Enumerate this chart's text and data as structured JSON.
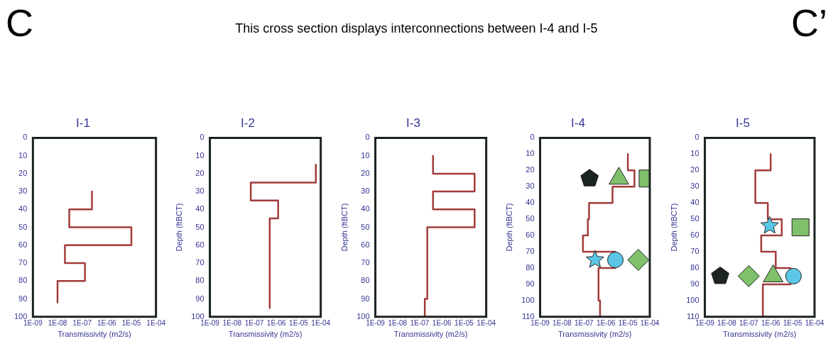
{
  "chart_data": [
    {
      "type": "other",
      "title": "This cross section displays interconnections between I-4 and I-5",
      "annotations": [
        "C",
        "C’"
      ]
    },
    {
      "type": "line",
      "title": "I-1",
      "xlabel": "Transmissivity (m2/s)",
      "log": "x",
      "grid": false,
      "legend": false,
      "xlim": [
        1e-09,
        0.0001
      ],
      "ylim": [
        100,
        0
      ],
      "xticks": [
        {
          "value": 1e-09,
          "label": "1E-09"
        },
        {
          "value": 1e-08,
          "label": "1E-08"
        },
        {
          "value": 1e-07,
          "label": "1E-07"
        },
        {
          "value": 1e-06,
          "label": "1E-06"
        },
        {
          "value": 1e-05,
          "label": "1E-05"
        },
        {
          "value": 0.0001,
          "label": "1E-04"
        }
      ],
      "yticks": [
        0,
        10,
        20,
        30,
        40,
        50,
        60,
        70,
        80,
        90,
        100
      ],
      "series": [
        {
          "type": "line",
          "color": "#a23b3b",
          "marker": "none",
          "x": [
            2.5e-07,
            2.5e-07,
            3e-08,
            3e-08,
            1e-05,
            1e-05,
            2e-08,
            2e-08,
            1.3e-07,
            1.3e-07,
            1e-08,
            1e-08
          ],
          "values": [
            30,
            40,
            40,
            50,
            50,
            60,
            60,
            70,
            70,
            80,
            80,
            92
          ]
        }
      ]
    },
    {
      "type": "line",
      "title": "I-2",
      "xlabel": "Transmissivity (m2/s)",
      "ylabel": "Depth (ftBCT)",
      "log": "x",
      "grid": false,
      "legend": false,
      "xlim": [
        1e-09,
        0.0001
      ],
      "ylim": [
        100,
        0
      ],
      "xticks": [
        {
          "value": 1e-09,
          "label": "1E-09"
        },
        {
          "value": 1e-08,
          "label": "1E-08"
        },
        {
          "value": 1e-07,
          "label": "1E-07"
        },
        {
          "value": 1e-06,
          "label": "1E-06"
        },
        {
          "value": 1e-05,
          "label": "1E-05"
        },
        {
          "value": 0.0001,
          "label": "1E-04"
        }
      ],
      "yticks": [
        0,
        10,
        20,
        30,
        40,
        50,
        60,
        70,
        80,
        90,
        100
      ],
      "series": [
        {
          "type": "line",
          "color": "#a23b3b",
          "marker": "none",
          "x": [
            6e-05,
            6e-05,
            7e-08,
            7e-08,
            1.2e-06,
            1.2e-06,
            5e-07,
            5e-07
          ],
          "values": [
            15,
            25,
            25,
            35,
            35,
            45,
            45,
            95
          ]
        }
      ]
    },
    {
      "type": "line",
      "title": "I-3",
      "xlabel": "Transmissivity (m2/s)",
      "ylabel": "Depth (ftBCT)",
      "log": "x",
      "grid": false,
      "legend": false,
      "xlim": [
        1e-09,
        0.0001
      ],
      "ylim": [
        100,
        0
      ],
      "xticks": [
        {
          "value": 1e-09,
          "label": "1E-09"
        },
        {
          "value": 1e-08,
          "label": "1E-08"
        },
        {
          "value": 1e-07,
          "label": "1E-07"
        },
        {
          "value": 1e-06,
          "label": "1E-06"
        },
        {
          "value": 1e-05,
          "label": "1E-05"
        },
        {
          "value": 0.0001,
          "label": "1E-04"
        }
      ],
      "yticks": [
        0,
        10,
        20,
        30,
        40,
        50,
        60,
        70,
        80,
        90,
        100
      ],
      "series": [
        {
          "type": "line",
          "color": "#a23b3b",
          "marker": "none",
          "x": [
            4e-07,
            4e-07,
            3e-05,
            3e-05,
            4e-07,
            4e-07,
            3e-05,
            3e-05,
            2.2e-07,
            2.2e-07,
            1.7e-07,
            1.7e-07
          ],
          "values": [
            10,
            20,
            20,
            30,
            30,
            40,
            40,
            50,
            50,
            90,
            90,
            100
          ]
        }
      ]
    },
    {
      "type": "line",
      "title": "I-4",
      "xlabel": "Transmissivity (m2/s)",
      "ylabel": "Depth (ftBCT)",
      "log": "x",
      "grid": false,
      "legend": false,
      "xlim": [
        1e-09,
        0.0001
      ],
      "ylim": [
        110,
        0
      ],
      "xticks": [
        {
          "value": 1e-09,
          "label": "1E-09"
        },
        {
          "value": 1e-08,
          "label": "1E-08"
        },
        {
          "value": 1e-07,
          "label": "1E-07"
        },
        {
          "value": 1e-06,
          "label": "1E-06"
        },
        {
          "value": 1e-05,
          "label": "1E-05"
        },
        {
          "value": 0.0001,
          "label": "1E-04"
        }
      ],
      "yticks": [
        0,
        10,
        20,
        30,
        40,
        50,
        60,
        70,
        80,
        90,
        100,
        110
      ],
      "series": [
        {
          "type": "line",
          "color": "#a23b3b",
          "marker": "none",
          "x": [
            1e-05,
            1e-05,
            2e-05,
            2e-05,
            2e-06,
            2e-06,
            1.7e-07,
            1.7e-07,
            1.5e-07,
            1.5e-07,
            9e-08,
            9e-08,
            2.7e-06,
            2.7e-06,
            4.6e-07,
            4.6e-07,
            5.4e-07,
            5.4e-07
          ],
          "values": [
            10,
            20,
            20,
            30,
            30,
            40,
            40,
            50,
            50,
            60,
            60,
            70,
            70,
            80,
            80,
            100,
            100,
            110
          ]
        },
        {
          "type": "scatter",
          "color": "#1b2421",
          "x": [
            1.8e-07
          ],
          "values": [
            25
          ]
        },
        {
          "type": "scatter",
          "color": "#7fc06a",
          "marker": "triangle",
          "x": [
            3.9e-06
          ],
          "values": [
            25
          ]
        },
        {
          "type": "scatter",
          "color": "#7fc06a",
          "marker": "square",
          "x": [
            8e-05
          ],
          "values": [
            25
          ]
        },
        {
          "type": "scatter",
          "color": "#5bc6e6",
          "marker": "star",
          "x": [
            3.2e-07
          ],
          "values": [
            75
          ]
        },
        {
          "type": "scatter",
          "color": "#5bc6e6",
          "marker": "circle",
          "x": [
            2.7e-06
          ],
          "values": [
            75
          ]
        },
        {
          "type": "scatter",
          "color": "#7fc06a",
          "marker": "diamond",
          "x": [
            3e-05
          ],
          "values": [
            75
          ]
        }
      ]
    },
    {
      "type": "line",
      "title": "I-5",
      "xlabel": "Transmissivity (m2/s)",
      "ylabel": "Depth (ftBCT)",
      "log": "x",
      "grid": false,
      "legend": false,
      "xlim": [
        1e-09,
        0.0001
      ],
      "ylim": [
        110,
        0
      ],
      "xticks": [
        {
          "value": 1e-09,
          "label": "1E-09"
        },
        {
          "value": 1e-08,
          "label": "1E-08"
        },
        {
          "value": 1e-07,
          "label": "1E-07"
        },
        {
          "value": 1e-06,
          "label": "1E-06"
        },
        {
          "value": 1e-05,
          "label": "1E-05"
        },
        {
          "value": 0.0001,
          "label": "1E-04"
        }
      ],
      "yticks": [
        0,
        10,
        20,
        30,
        40,
        50,
        60,
        70,
        80,
        90,
        100,
        110
      ],
      "series": [
        {
          "type": "line",
          "color": "#a23b3b",
          "marker": "none",
          "x": [
            1e-06,
            1e-06,
            2e-07,
            2e-07,
            7.4e-07,
            7.4e-07,
            3.2e-06,
            3.2e-06,
            3.7e-07,
            3.7e-07,
            1.7e-06,
            1.7e-06,
            8e-06,
            8e-06,
            4.4e-07,
            4.4e-07
          ],
          "values": [
            10,
            20,
            20,
            40,
            40,
            50,
            50,
            60,
            60,
            70,
            70,
            80,
            80,
            90,
            90,
            110
          ]
        },
        {
          "type": "scatter",
          "color": "#5bc6e6",
          "marker": "star",
          "x": [
            9e-07
          ],
          "values": [
            54
          ]
        },
        {
          "type": "scatter",
          "color": "#7fc06a",
          "marker": "square",
          "x": [
            2.3e-05
          ],
          "values": [
            55
          ]
        },
        {
          "type": "scatter",
          "color": "#1b2421",
          "x": [
            5e-09
          ],
          "values": [
            85
          ]
        },
        {
          "type": "scatter",
          "color": "#7fc06a",
          "marker": "diamond",
          "x": [
            1e-07
          ],
          "values": [
            85
          ]
        },
        {
          "type": "scatter",
          "color": "#7fc06a",
          "marker": "triangle",
          "x": [
            1.3e-06
          ],
          "values": [
            85
          ]
        },
        {
          "type": "scatter",
          "color": "#5bc6e6",
          "marker": "circle",
          "x": [
            1.1e-05
          ],
          "values": [
            85
          ]
        }
      ]
    }
  ]
}
